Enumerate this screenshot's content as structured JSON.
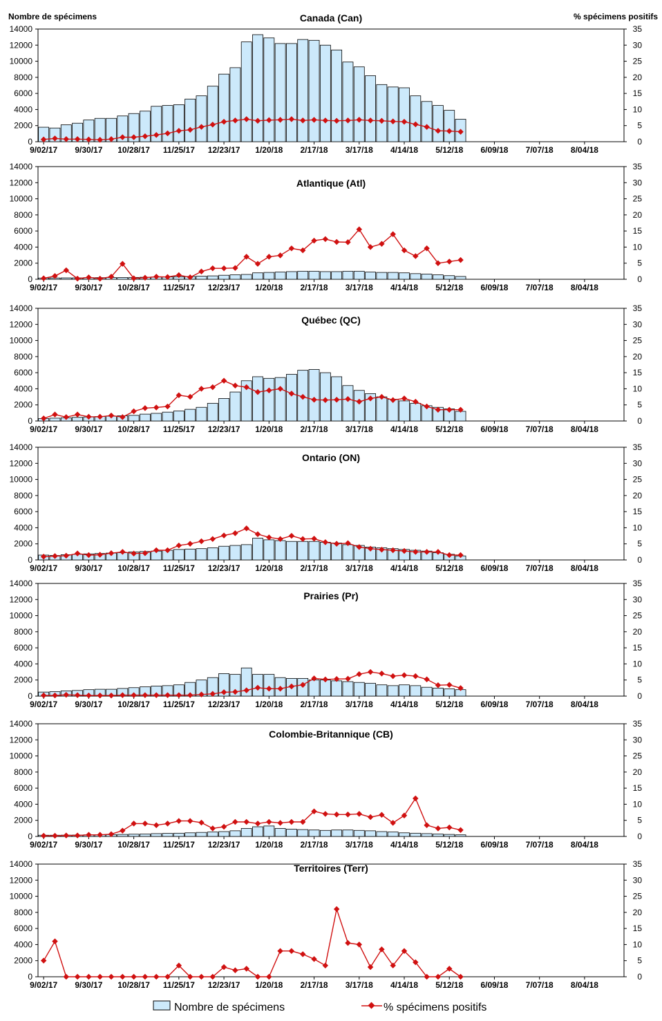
{
  "header": {
    "left_axis_label": "Nombre de spécimens",
    "right_axis_label": "% spécimens positifs"
  },
  "legend": {
    "bars_label": "Nombre de spécimens",
    "line_label": "% spécimens positifs"
  },
  "colors": {
    "bar_fill": "#cce9fb",
    "bar_stroke": "#000000",
    "line": "#d01010",
    "axis": "#000000"
  },
  "chart_data": [
    {
      "type": "bar",
      "title": "Canada (Can)",
      "x_tick_labels": [
        "9/02/17",
        "9/30/17",
        "10/28/17",
        "11/25/17",
        "12/23/17",
        "1/20/18",
        "2/17/18",
        "3/17/18",
        "4/14/18",
        "5/12/18",
        "6/09/18",
        "7/07/18",
        "8/04/18"
      ],
      "ylim_left": [
        0,
        14000
      ],
      "left_ticks": [
        0,
        2000,
        4000,
        6000,
        8000,
        10000,
        12000,
        14000
      ],
      "ylim_right": [
        0,
        35
      ],
      "right_ticks": [
        0,
        5,
        10,
        15,
        20,
        25,
        30,
        35
      ],
      "series": [
        {
          "name": "Nombre de spécimens",
          "type": "bar",
          "axis": "left",
          "values": [
            1800,
            1700,
            2100,
            2300,
            2700,
            2900,
            2900,
            3200,
            3500,
            3800,
            4400,
            4500,
            4600,
            5300,
            5700,
            6900,
            8400,
            9200,
            12400,
            13300,
            12900,
            12200,
            12200,
            12700,
            12600,
            12000,
            11400,
            9900,
            9300,
            8200,
            7100,
            6800,
            6700,
            5700,
            5000,
            4500,
            3900,
            2800
          ]
        },
        {
          "name": "% spécimens positifs",
          "type": "line",
          "axis": "right",
          "values": [
            0.7,
            1.0,
            0.8,
            0.8,
            0.7,
            0.6,
            0.8,
            1.4,
            1.4,
            1.7,
            2.1,
            2.6,
            3.4,
            3.7,
            4.6,
            5.3,
            6.2,
            6.6,
            7.0,
            6.5,
            6.7,
            6.8,
            7.0,
            6.6,
            6.8,
            6.6,
            6.5,
            6.6,
            6.8,
            6.6,
            6.5,
            6.3,
            6.2,
            5.4,
            4.6,
            3.4,
            3.3,
            3.1
          ]
        }
      ]
    },
    {
      "type": "bar",
      "title": "Atlantique (Atl)",
      "x_tick_labels": [
        "9/02/17",
        "9/30/17",
        "10/28/17",
        "11/25/17",
        "12/23/17",
        "1/20/18",
        "2/17/18",
        "3/17/18",
        "4/14/18",
        "5/12/18",
        "6/09/18",
        "7/07/18",
        "8/04/18"
      ],
      "ylim_left": [
        0,
        14000
      ],
      "left_ticks": [
        0,
        2000,
        4000,
        6000,
        8000,
        10000,
        12000,
        14000
      ],
      "ylim_right": [
        0,
        35
      ],
      "right_ticks": [
        0,
        5,
        10,
        15,
        20,
        25,
        30,
        35
      ],
      "series": [
        {
          "name": "Nombre de spécimens",
          "type": "bar",
          "axis": "left",
          "values": [
            150,
            160,
            170,
            170,
            200,
            200,
            210,
            220,
            230,
            250,
            280,
            300,
            320,
            350,
            380,
            420,
            500,
            550,
            600,
            800,
            850,
            900,
            950,
            1000,
            1000,
            950,
            950,
            1000,
            1000,
            900,
            850,
            850,
            800,
            700,
            650,
            550,
            450,
            350
          ]
        },
        {
          "name": "% spécimens positifs",
          "type": "line",
          "axis": "right",
          "values": [
            0.3,
            1.0,
            2.8,
            0.2,
            0.6,
            0.2,
            0.8,
            4.8,
            0.3,
            0.5,
            0.8,
            0.7,
            1.3,
            0.6,
            2.4,
            3.4,
            3.4,
            3.5,
            7.0,
            4.8,
            7.0,
            7.4,
            9.6,
            9.0,
            12.0,
            12.5,
            11.6,
            11.5,
            15.5,
            10.0,
            11.0,
            14.0,
            9.0,
            7.2,
            9.6,
            5.0,
            5.5,
            6.0
          ]
        }
      ]
    },
    {
      "type": "bar",
      "title": "Québec (QC)",
      "x_tick_labels": [
        "9/02/17",
        "9/30/17",
        "10/28/17",
        "11/25/17",
        "12/23/17",
        "1/20/18",
        "2/17/18",
        "3/17/18",
        "4/14/18",
        "5/12/18",
        "6/09/18",
        "7/07/18",
        "8/04/18"
      ],
      "ylim_left": [
        0,
        14000
      ],
      "left_ticks": [
        0,
        2000,
        4000,
        6000,
        8000,
        10000,
        12000,
        14000
      ],
      "ylim_right": [
        0,
        35
      ],
      "right_ticks": [
        0,
        5,
        10,
        15,
        20,
        25,
        30,
        35
      ],
      "series": [
        {
          "name": "Nombre de spécimens",
          "type": "bar",
          "axis": "left",
          "values": [
            300,
            350,
            400,
            450,
            500,
            550,
            600,
            650,
            700,
            850,
            950,
            1100,
            1250,
            1450,
            1700,
            2200,
            2800,
            3600,
            5000,
            5500,
            5300,
            5400,
            5800,
            6300,
            6400,
            6000,
            5500,
            4400,
            3800,
            3400,
            3000,
            2700,
            2500,
            2200,
            1900,
            1700,
            1500,
            1200
          ]
        },
        {
          "name": "% spécimens positifs",
          "type": "line",
          "axis": "right",
          "values": [
            0.8,
            2.0,
            1.2,
            2.0,
            1.3,
            1.3,
            1.7,
            1.2,
            3.0,
            4.0,
            4.2,
            4.5,
            8.0,
            7.5,
            10.0,
            10.5,
            12.5,
            11.0,
            10.5,
            9.0,
            9.5,
            10.0,
            8.5,
            7.5,
            6.6,
            6.5,
            6.6,
            6.8,
            6.0,
            7.0,
            7.5,
            6.5,
            7.0,
            6.0,
            4.5,
            3.5,
            3.5,
            3.5
          ]
        }
      ]
    },
    {
      "type": "bar",
      "title": "Ontario (ON)",
      "x_tick_labels": [
        "9/02/17",
        "9/30/17",
        "10/28/17",
        "11/25/17",
        "12/23/17",
        "1/20/18",
        "2/17/18",
        "3/17/18",
        "4/14/18",
        "5/12/18",
        "6/09/18",
        "7/07/18",
        "8/04/18"
      ],
      "ylim_left": [
        0,
        14000
      ],
      "left_ticks": [
        0,
        2000,
        4000,
        6000,
        8000,
        10000,
        12000,
        14000
      ],
      "ylim_right": [
        0,
        35
      ],
      "right_ticks": [
        0,
        5,
        10,
        15,
        20,
        25,
        30,
        35
      ],
      "series": [
        {
          "name": "Nombre de spécimens",
          "type": "bar",
          "axis": "left",
          "values": [
            600,
            550,
            650,
            700,
            750,
            800,
            850,
            900,
            1000,
            1050,
            1100,
            1200,
            1300,
            1350,
            1400,
            1500,
            1700,
            1800,
            1900,
            2700,
            2500,
            2400,
            2300,
            2300,
            2300,
            2200,
            2100,
            1900,
            1800,
            1600,
            1500,
            1400,
            1300,
            1200,
            1100,
            900,
            700,
            500
          ]
        },
        {
          "name": "% spécimens positifs",
          "type": "line",
          "axis": "right",
          "values": [
            1.0,
            1.2,
            1.3,
            2.0,
            1.5,
            1.6,
            2.1,
            2.5,
            2.0,
            2.1,
            3.0,
            3.0,
            4.5,
            5.0,
            5.8,
            6.5,
            7.6,
            8.3,
            9.8,
            8.0,
            7.0,
            6.5,
            7.5,
            6.5,
            6.6,
            5.5,
            5.0,
            5.2,
            4.0,
            3.5,
            3.2,
            3.0,
            2.8,
            2.5,
            2.5,
            2.5,
            1.5,
            1.5
          ]
        }
      ]
    },
    {
      "type": "bar",
      "title": "Prairies (Pr)",
      "x_tick_labels": [
        "9/02/17",
        "9/30/17",
        "10/28/17",
        "11/25/17",
        "12/23/17",
        "1/20/18",
        "2/17/18",
        "3/17/18",
        "4/14/18",
        "5/12/18",
        "6/09/18",
        "7/07/18",
        "8/04/18"
      ],
      "ylim_left": [
        0,
        14000
      ],
      "left_ticks": [
        0,
        2000,
        4000,
        6000,
        8000,
        10000,
        12000,
        14000
      ],
      "ylim_right": [
        0,
        35
      ],
      "right_ticks": [
        0,
        5,
        10,
        15,
        20,
        25,
        30,
        35
      ],
      "series": [
        {
          "name": "Nombre de spécimens",
          "type": "bar",
          "axis": "left",
          "values": [
            500,
            550,
            650,
            700,
            800,
            850,
            850,
            950,
            1050,
            1150,
            1250,
            1300,
            1400,
            1700,
            2000,
            2300,
            2800,
            2700,
            3500,
            2700,
            2700,
            2300,
            2200,
            2200,
            2000,
            2000,
            1900,
            1800,
            1700,
            1600,
            1400,
            1300,
            1400,
            1300,
            1100,
            1000,
            900,
            800
          ]
        },
        {
          "name": "% spécimens positifs",
          "type": "line",
          "axis": "right",
          "values": [
            0.2,
            0.2,
            0.4,
            0.3,
            0.2,
            0.2,
            0.2,
            0.3,
            0.3,
            0.3,
            0.3,
            0.3,
            0.3,
            0.3,
            0.5,
            0.7,
            1.2,
            1.3,
            1.8,
            2.6,
            2.3,
            2.3,
            3.0,
            3.5,
            5.5,
            5.2,
            5.3,
            5.4,
            6.8,
            7.5,
            7.0,
            6.2,
            6.5,
            6.2,
            5.2,
            3.4,
            3.5,
            2.5
          ]
        }
      ]
    },
    {
      "type": "bar",
      "title": "Colombie-Britannique (CB)",
      "x_tick_labels": [
        "9/02/17",
        "9/30/17",
        "10/28/17",
        "11/25/17",
        "12/23/17",
        "1/20/18",
        "2/17/18",
        "3/17/18",
        "4/14/18",
        "5/12/18",
        "6/09/18",
        "7/07/18",
        "8/04/18"
      ],
      "ylim_left": [
        0,
        14000
      ],
      "left_ticks": [
        0,
        2000,
        4000,
        6000,
        8000,
        10000,
        12000,
        14000
      ],
      "ylim_right": [
        0,
        35
      ],
      "right_ticks": [
        0,
        5,
        10,
        15,
        20,
        25,
        30,
        35
      ],
      "series": [
        {
          "name": "Nombre de spécimens",
          "type": "bar",
          "axis": "left",
          "values": [
            150,
            150,
            160,
            170,
            200,
            220,
            230,
            250,
            280,
            300,
            350,
            380,
            400,
            450,
            500,
            550,
            600,
            700,
            1000,
            1200,
            1300,
            1000,
            900,
            850,
            800,
            750,
            800,
            800,
            750,
            700,
            600,
            550,
            450,
            400,
            350,
            300,
            250,
            200
          ]
        },
        {
          "name": "% spécimens positifs",
          "type": "line",
          "axis": "right",
          "values": [
            0.2,
            0.2,
            0.3,
            0.3,
            0.5,
            0.5,
            0.7,
            1.8,
            4.0,
            4.0,
            3.5,
            4.0,
            4.8,
            4.8,
            4.3,
            2.5,
            3.0,
            4.5,
            4.5,
            4.0,
            4.5,
            4.2,
            4.5,
            4.5,
            7.8,
            7.0,
            6.8,
            6.8,
            7.0,
            6.0,
            6.7,
            4.2,
            6.5,
            11.8,
            3.5,
            2.5,
            2.8,
            2.0
          ]
        }
      ]
    },
    {
      "type": "bar",
      "title": "Territoires (Terr)",
      "x_tick_labels": [
        "9/02/17",
        "9/30/17",
        "10/28/17",
        "11/25/17",
        "12/23/17",
        "1/20/18",
        "2/17/18",
        "3/17/18",
        "4/14/18",
        "5/12/18",
        "6/09/18",
        "7/07/18",
        "8/04/18"
      ],
      "ylim_left": [
        0,
        14000
      ],
      "left_ticks": [
        0,
        2000,
        4000,
        6000,
        8000,
        10000,
        12000,
        14000
      ],
      "ylim_right": [
        0,
        35
      ],
      "right_ticks": [
        0,
        5,
        10,
        15,
        20,
        25,
        30,
        35
      ],
      "series": [
        {
          "name": "Nombre de spécimens",
          "type": "bar",
          "axis": "left",
          "values": [
            0,
            0,
            0,
            0,
            0,
            0,
            0,
            0,
            0,
            0,
            0,
            0,
            0,
            0,
            0,
            0,
            0,
            0,
            0,
            0,
            0,
            0,
            0,
            0,
            0,
            0,
            0,
            0,
            0,
            0,
            0,
            0,
            0,
            0,
            0,
            0,
            0,
            0
          ]
        },
        {
          "name": "% spécimens positifs",
          "type": "line",
          "axis": "right",
          "values": [
            5.0,
            11.0,
            0.0,
            0.0,
            0.0,
            0.0,
            0.0,
            0.0,
            0.0,
            0.0,
            0.0,
            0.0,
            3.5,
            0.0,
            0.0,
            0.0,
            3.0,
            2.0,
            2.5,
            0.0,
            0.0,
            8.0,
            8.0,
            7.0,
            5.5,
            3.5,
            21.0,
            10.5,
            10.0,
            3.0,
            8.5,
            3.5,
            8.0,
            4.5,
            0.0,
            0.0,
            2.5,
            0.0
          ]
        }
      ]
    }
  ]
}
